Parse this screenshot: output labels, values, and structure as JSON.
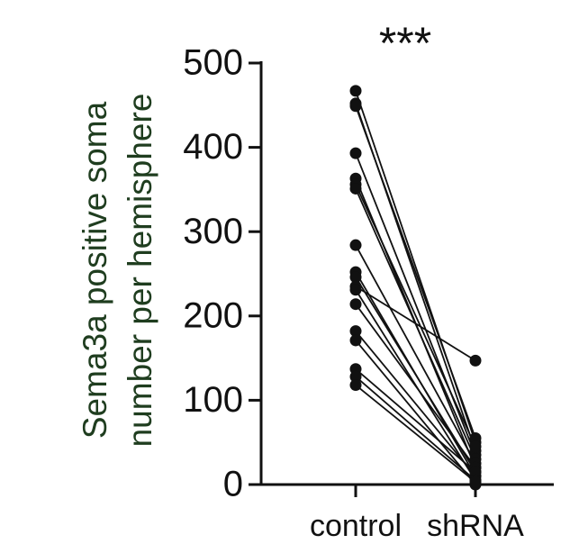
{
  "chart_data": {
    "type": "paired",
    "title": "***",
    "ylabel": [
      "Sema3a positive soma",
      "number per hemisphere"
    ],
    "categories": [
      "control",
      "shRNA"
    ],
    "pairs": [
      [
        467,
        50
      ],
      [
        452,
        40
      ],
      [
        449,
        55
      ],
      [
        393,
        35
      ],
      [
        363,
        20
      ],
      [
        356,
        45
      ],
      [
        351,
        30
      ],
      [
        284,
        25
      ],
      [
        252,
        10
      ],
      [
        246,
        15
      ],
      [
        235,
        147
      ],
      [
        231,
        5
      ],
      [
        214,
        20
      ],
      [
        182,
        10
      ],
      [
        171,
        0
      ],
      [
        137,
        15
      ],
      [
        128,
        5
      ],
      [
        118,
        3
      ]
    ],
    "color": "#111111",
    "label_color": "#1f3d1f",
    "ylim": [
      0,
      500
    ],
    "yticks": [
      0,
      100,
      200,
      300,
      400,
      500
    ]
  }
}
